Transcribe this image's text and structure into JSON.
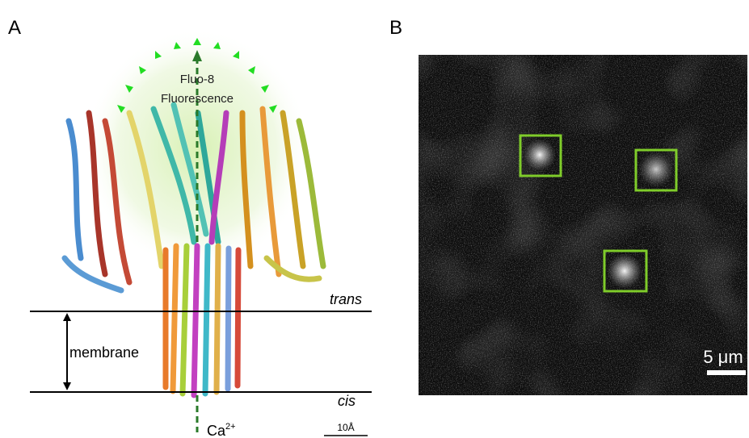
{
  "panel_a": {
    "label": "A",
    "dye": "Fluo-8",
    "signal": "Fluorescence",
    "side_top": "trans",
    "layer": "membrane",
    "side_bottom": "cis",
    "ion": "Ca",
    "ion_charge": "2+",
    "scale_bar": "10Å"
  },
  "panel_b": {
    "label": "B",
    "scale_bar": "5 μm"
  }
}
